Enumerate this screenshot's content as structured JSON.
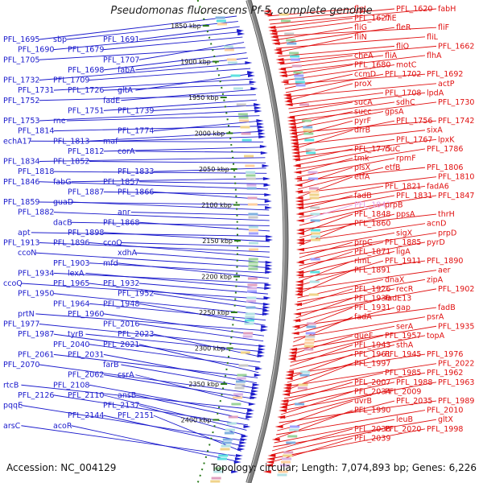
{
  "title": "Pseudomonas fluorescens Pf-5, complete genome",
  "accession": "Accession: NC_004129",
  "summary": "Topology: circular; Length: 7,074,893 bp; Genes: 6,226",
  "colors": {
    "forward_genes": "#1a1acc",
    "reverse_genes": "#e01010",
    "backbone": "#808080",
    "ticks": "#2a7a1a",
    "muted_label": "#e3a0e6"
  },
  "scale_ticks": [
    "1850 kbp",
    "1900 kbp",
    "1950 kbp",
    "2000 kbp",
    "2050 kbp",
    "2100 kbp",
    "2150 kbp",
    "2200 kbp",
    "2250 kbp",
    "2300 kbp",
    "2350 kbp",
    "2400 kbp"
  ],
  "left_labels": [
    "PFL_1695",
    "sbp",
    "PFL_1691",
    "PFL_1690",
    "PFL_1679",
    "PFL_1707",
    "PFL_1705",
    "PFL_1698",
    "fabA",
    "PFL_1732",
    "PFL_1709",
    "gltA",
    "PFL_1731",
    "PFL_1726",
    "fadE",
    "PFL_1752",
    "PFL_1751",
    "PFL_1739",
    "PFL_1753",
    "rne",
    "PFL_1774",
    "PFL_1814",
    "PFL_1813",
    "maf",
    "echA17",
    "PFL_1812",
    "corA",
    "PFL_1834",
    "PFL_1852",
    "PFL_1833",
    "PFL_1818",
    "fabG",
    "PFL_1857",
    "PFL_1846",
    "PFL_1887",
    "PFL_1866",
    "PFL_1859",
    "guaD",
    "anr",
    "PFL_1882",
    "dacB",
    "PFL_1868",
    "apt",
    "PFL_1898",
    "ccoQ",
    "PFL_1913",
    "PFL_1896",
    "xdhA",
    "ccoN",
    "PFL_1903",
    "mfd",
    "PFL_1934",
    "lexA",
    "PFL_1932",
    "ccoQ",
    "PFL_1965",
    "PFL_1952",
    "PFL_1950",
    "PFL_1964",
    "PFL_1948",
    "prtN",
    "PFL_1960",
    "PFL_2016",
    "PFL_1977",
    "tyrB",
    "PFL_2023",
    "PFL_1987",
    "PFL_2040",
    "PFL_2021",
    "PFL_2061",
    "PFL_2031",
    "farB",
    "PFL_2070",
    "PFL_2062",
    "csrA",
    "rtcB",
    "PFL_2108",
    "ansB",
    "PFL_2126",
    "PFL_2110",
    "PFL_2137",
    "pqqE",
    "PFL_2144",
    "PFL_2151",
    "arsC",
    "acoR"
  ],
  "right_labels": [
    "flgL",
    "PFL_1620",
    "fabH",
    "PFL_1627",
    "fliE",
    "fliF",
    "fliG",
    "fleR",
    "fliL",
    "fliN",
    "fliO",
    "PFL_1662",
    "cheA",
    "fliA",
    "flhA",
    "PFL_1680",
    "motC",
    "PFL_1692",
    "ccmD",
    "PFL_1702",
    "actP",
    "proX",
    "PFL_1708",
    "lpdA",
    "sucA",
    "sdhC",
    "PFL_1730",
    "succ",
    "gpsA",
    "PFL_1742",
    "pyrF",
    "PFL_1756",
    "sixA",
    "drrB",
    "PFL_1767",
    "lpxK",
    "PFL_1775",
    "rluC",
    "PFL_1786",
    "tmk",
    "rpmF",
    "PFL_1806",
    "plsX",
    "etfB",
    "PFL_1810",
    "etfA",
    "PFL_1821",
    "fadA6",
    "fadB",
    "PFL_1831",
    "PFL_1847",
    "PFL_1841",
    "prpB",
    "thrH",
    "PFL_1848",
    "ppsA",
    "acnD",
    "PFL_1860",
    "sigX",
    "prpD",
    "prpC",
    "PFL_1885",
    "pyrD",
    "PFL_1871",
    "ligA",
    "PFL_1890",
    "rlmL",
    "PFL_1911",
    "aer",
    "PFL_1891",
    "dnaX",
    "zipA",
    "PFL_1926",
    "recR",
    "PFL_1902",
    "PFL_1930",
    "fadE13",
    "fadB",
    "PFL_1931",
    "gap",
    "psrA",
    "fadA",
    "serA",
    "PFL_1935",
    "queF",
    "PFL_1957",
    "topA",
    "PFL_1943",
    "sthA",
    "PFL_1976",
    "PFL_1961",
    "PFL_1945",
    "PFL_2022",
    "PFL_1997",
    "PFL_1985",
    "PFL_1962",
    "PFL_2007",
    "PFL_1988",
    "PFL_1963",
    "PFL_2034",
    "PFL_2009",
    "PFL_1989",
    "uvrB",
    "PFL_2035",
    "PFL_2010",
    "PFL_1990",
    "leuB",
    "gltX",
    "PFL_2038",
    "PFL_2020",
    "PFL_1998",
    "PFL_2039"
  ]
}
